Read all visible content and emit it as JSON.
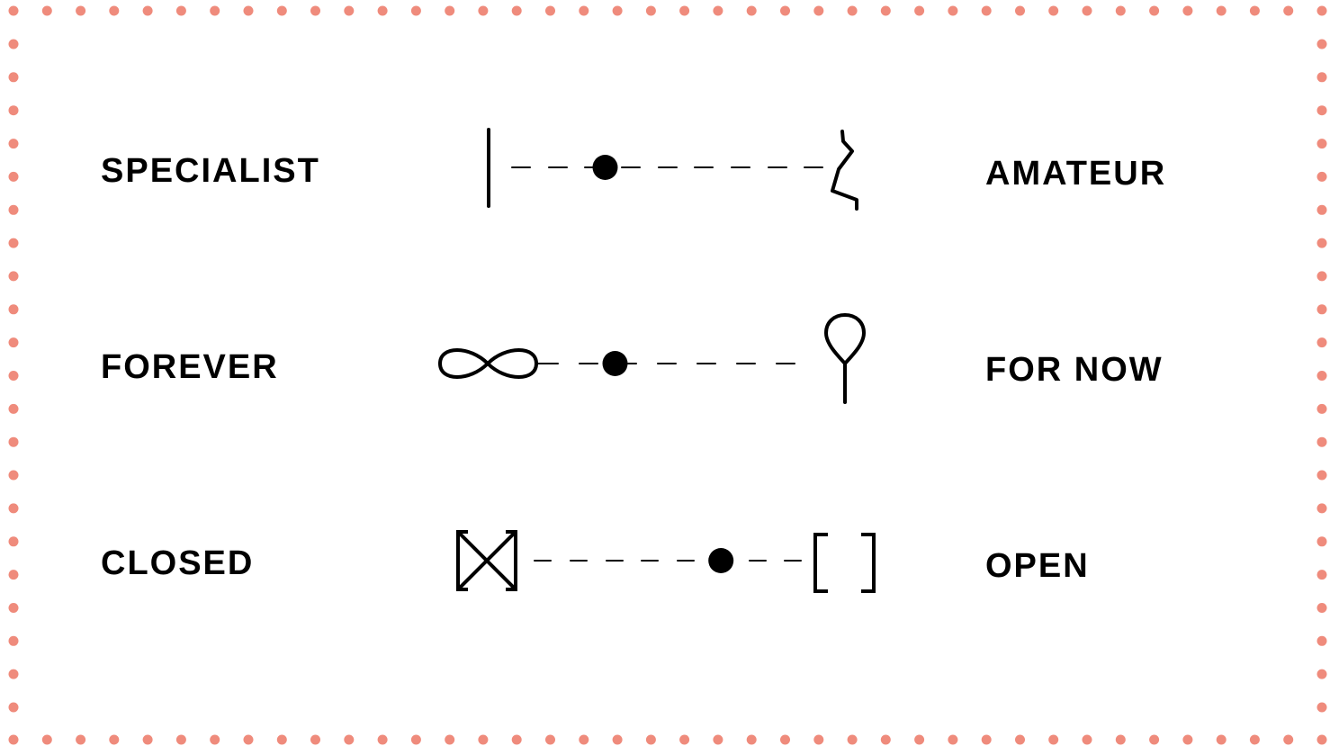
{
  "border": {
    "dot_color": "#ef8b7c"
  },
  "ink_color": "#000000",
  "spectra": [
    {
      "left_label": "SPECIALIST",
      "right_label": "AMATEUR",
      "left_icon": "vertical-bar-icon",
      "right_icon": "zigzag-line-icon",
      "marker_position": 0.3
    },
    {
      "left_label": "FOREVER",
      "right_label": "FOR NOW",
      "left_icon": "infinity-icon",
      "right_icon": "balloon-icon",
      "marker_position": 0.3
    },
    {
      "left_label": "CLOSED",
      "right_label": "OPEN",
      "left_icon": "closed-box-icon",
      "right_icon": "open-brackets-icon",
      "marker_position": 0.7
    }
  ]
}
